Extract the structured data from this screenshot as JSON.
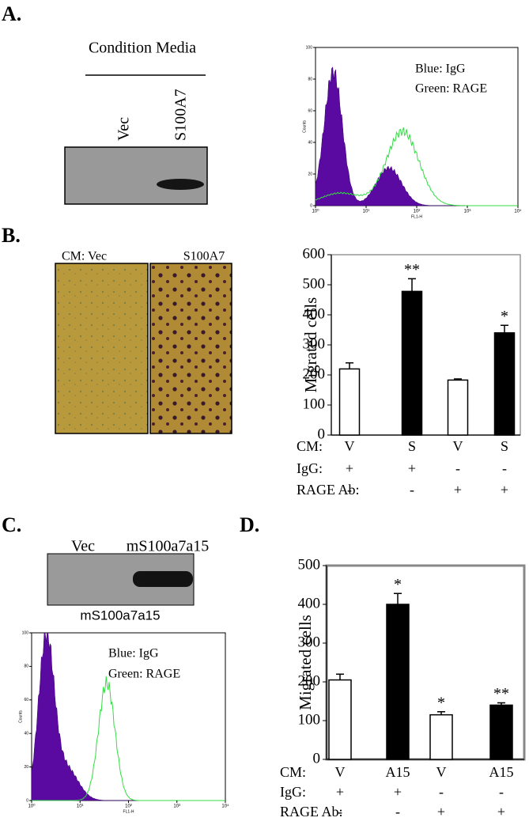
{
  "panel_labels": [
    "A.",
    "B.",
    "C.",
    "D."
  ],
  "panel_a": {
    "blot_title": "Condition Media",
    "lanes": [
      "Vec",
      "S100A7"
    ]
  },
  "panel_b": {
    "image_labels": [
      "CM:  Vec",
      "S100A7"
    ]
  },
  "panel_c": {
    "lanes": [
      "Vec",
      "mS100a7a15"
    ],
    "blot_caption": "mS100a7a15"
  },
  "flow_histograms": [
    {
      "ylabel": "Counts",
      "xlabel": "FL1-H",
      "legend": [
        "Blue: IgG",
        "Green: RAGE"
      ],
      "ylim": [
        0,
        100
      ],
      "yticks": [
        0,
        20,
        40,
        60,
        80,
        100
      ],
      "xlim": [
        1,
        10000
      ],
      "log_x": true,
      "xticks": [
        {
          "value": 1,
          "label": "10⁰"
        },
        {
          "value": 10,
          "label": "10¹"
        },
        {
          "value": 100,
          "label": "10²"
        },
        {
          "value": 1000,
          "label": "10³"
        },
        {
          "value": 10000,
          "label": "10⁴"
        }
      ]
    },
    {
      "ylabel": "Counts",
      "xlabel": "FL1-H",
      "legend": [
        "Blue: IgG",
        "Green: RAGE"
      ],
      "ylim": [
        0,
        100
      ],
      "yticks": [
        0,
        20,
        40,
        60,
        80,
        100
      ],
      "xlim": [
        1,
        10000
      ],
      "log_x": true,
      "xticks": [
        {
          "value": 1,
          "label": "10⁰"
        },
        {
          "value": 10,
          "label": "10¹"
        },
        {
          "value": 100,
          "label": "10²"
        },
        {
          "value": 1000,
          "label": "10³"
        },
        {
          "value": 10000,
          "label": "10⁴"
        }
      ]
    }
  ],
  "chart_data": [
    {
      "type": "bar",
      "ylabel": "Migrated cells",
      "categories": [
        "V",
        "S",
        "V",
        "S"
      ],
      "values": [
        220,
        478,
        183,
        340
      ],
      "errors": [
        20,
        42,
        4,
        25
      ],
      "colors": [
        "#ffffff",
        "#000000",
        "#ffffff",
        "#000000"
      ],
      "ylim": [
        0,
        600
      ],
      "yticks": [
        0,
        100,
        200,
        300,
        400,
        500,
        600
      ],
      "annotations": [
        {
          "index": 1,
          "text": "**"
        },
        {
          "index": 3,
          "text": "*"
        }
      ],
      "condition_rows": [
        {
          "label": "CM:",
          "values": [
            "V",
            "S",
            "V",
            "S"
          ]
        },
        {
          "label": "IgG:",
          "values": [
            "+",
            "+",
            "-",
            "-"
          ]
        },
        {
          "label": "RAGE Ab:",
          "values": [
            "-",
            "-",
            "+",
            "+"
          ]
        }
      ]
    },
    {
      "type": "bar",
      "ylabel": "Migrated cells",
      "categories": [
        "V",
        "A15",
        "V",
        "A15"
      ],
      "values": [
        205,
        400,
        115,
        140
      ],
      "errors": [
        15,
        28,
        8,
        6
      ],
      "colors": [
        "#ffffff",
        "#000000",
        "#ffffff",
        "#000000"
      ],
      "ylim": [
        0,
        500
      ],
      "yticks": [
        0,
        100,
        200,
        300,
        400,
        500
      ],
      "annotations": [
        {
          "index": 1,
          "text": "*"
        },
        {
          "index": 2,
          "text": "*"
        },
        {
          "index": 3,
          "text": "**"
        }
      ],
      "condition_rows": [
        {
          "label": "CM:",
          "values": [
            "V",
            "A15",
            "V",
            "A15"
          ]
        },
        {
          "label": "IgG:",
          "values": [
            "+",
            "+",
            "-",
            "-"
          ]
        },
        {
          "label": "RAGE Ab:",
          "values": [
            "-",
            "-",
            "+",
            "+"
          ]
        }
      ]
    }
  ]
}
